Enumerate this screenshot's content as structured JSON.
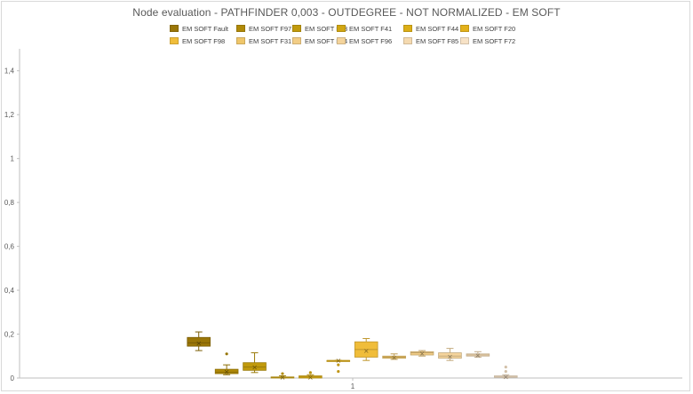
{
  "chart_data": {
    "type": "box",
    "title": "Node evaluation - PATHFINDER 0,003 - OUTDEGREE  - NOT NORMALIZED - EM SOFT",
    "xlabel": "",
    "ylabel": "",
    "ylim": [
      0,
      1.5
    ],
    "yticks": [
      "0",
      "0,2",
      "0,4",
      "0,6",
      "0,8",
      "1",
      "1,2",
      "1,4"
    ],
    "ytick_values": [
      0,
      0.2,
      0.4,
      0.6,
      0.8,
      1.0,
      1.2,
      1.4
    ],
    "categories": [
      "1"
    ],
    "grid": false,
    "legend_position": "top",
    "series": [
      {
        "name": "EM SOFT Fault",
        "color": "#9a7608",
        "min": 0.125,
        "q1": 0.145,
        "median": 0.16,
        "q3": 0.185,
        "max": 0.21,
        "mean": 0.16,
        "outliers": []
      },
      {
        "name": "EM SOFT F97",
        "color": "#b08a08",
        "min": 0.015,
        "q1": 0.02,
        "median": 0.027,
        "q3": 0.04,
        "max": 0.06,
        "mean": 0.03,
        "outliers": [
          0.11
        ]
      },
      {
        "name": "EM SOFT F53",
        "color": "#c19a0c",
        "min": 0.025,
        "q1": 0.035,
        "median": 0.05,
        "q3": 0.07,
        "max": 0.115,
        "mean": 0.05,
        "outliers": []
      },
      {
        "name": "EM SOFT F41",
        "color": "#d1a612",
        "min": 0.0,
        "q1": 0.0,
        "median": 0.003,
        "q3": 0.005,
        "max": 0.01,
        "mean": 0.004,
        "outliers": [
          0.02
        ]
      },
      {
        "name": "EM SOFT F44",
        "color": "#dcae16",
        "min": 0.0,
        "q1": 0.0,
        "median": 0.005,
        "q3": 0.01,
        "max": 0.015,
        "mean": 0.005,
        "outliers": [
          0.025
        ]
      },
      {
        "name": "EM SOFT F20",
        "color": "#e3b11a",
        "min": 0.08,
        "q1": 0.08,
        "median": 0.08,
        "q3": 0.08,
        "max": 0.08,
        "mean": 0.08,
        "outliers": [
          0.06,
          0.03
        ]
      },
      {
        "name": "EM SOFT F98",
        "color": "#f0bd3a",
        "min": 0.08,
        "q1": 0.095,
        "median": 0.13,
        "q3": 0.165,
        "max": 0.18,
        "mean": 0.125,
        "outliers": []
      },
      {
        "name": "EM SOFT F31",
        "color": "#efc66a",
        "min": 0.085,
        "q1": 0.09,
        "median": 0.095,
        "q3": 0.1,
        "max": 0.11,
        "mean": 0.095,
        "outliers": []
      },
      {
        "name": "EM SOFT F84",
        "color": "#f2cd86",
        "min": 0.1,
        "q1": 0.105,
        "median": 0.115,
        "q3": 0.12,
        "max": 0.125,
        "mean": 0.113,
        "outliers": []
      },
      {
        "name": "EM SOFT F96",
        "color": "#f4d49c",
        "min": 0.08,
        "q1": 0.09,
        "median": 0.1,
        "q3": 0.115,
        "max": 0.135,
        "mean": 0.1,
        "outliers": []
      },
      {
        "name": "EM SOFT F85",
        "color": "#f5dab0",
        "min": 0.095,
        "q1": 0.1,
        "median": 0.105,
        "q3": 0.11,
        "max": 0.12,
        "mean": 0.105,
        "outliers": []
      },
      {
        "name": "EM SOFT F72",
        "color": "#f7e2c6",
        "min": 0.0,
        "q1": 0.003,
        "median": 0.005,
        "q3": 0.01,
        "max": 0.015,
        "mean": 0.007,
        "outliers": [
          0.05,
          0.03
        ]
      }
    ]
  }
}
